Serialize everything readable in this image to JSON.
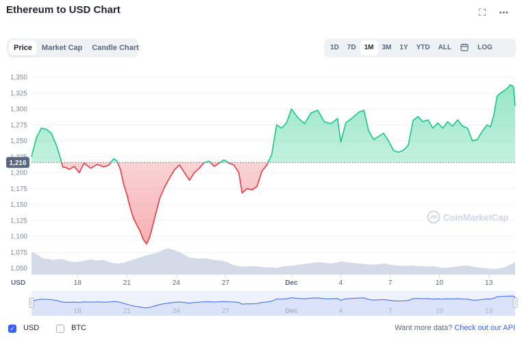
{
  "header": {
    "title": "Ethereum to USD Chart",
    "fullscreen_icon": "expand-icon",
    "more_icon": "more-dots-icon"
  },
  "chart_tabs": [
    {
      "label": "Price",
      "active": true
    },
    {
      "label": "Market Cap",
      "active": false
    },
    {
      "label": "Candle Chart",
      "active": false
    }
  ],
  "time_ranges": [
    {
      "label": "1D",
      "active": false
    },
    {
      "label": "7D",
      "active": false
    },
    {
      "label": "1M",
      "active": true
    },
    {
      "label": "3M",
      "active": false
    },
    {
      "label": "1Y",
      "active": false
    },
    {
      "label": "YTD",
      "active": false
    },
    {
      "label": "ALL",
      "active": false
    }
  ],
  "calendar_icon": "calendar-icon",
  "log_label": "LOG",
  "watermark": "CoinMarketCap",
  "colors": {
    "up": "#16c784",
    "down": "#ea3943",
    "volume": "#cfd6e4",
    "navigator": "#3861fb",
    "reference": "#222531"
  },
  "chart_data": {
    "type": "line",
    "currency_label": "USD",
    "reference_value": 1216,
    "reference_label": "1,216",
    "y_ticks": [
      "1,350",
      "1,325",
      "1,300",
      "1,275",
      "1,250",
      "1,225",
      "1,200",
      "1,175",
      "1,150",
      "1,125",
      "1,100",
      "1,075",
      "1,050"
    ],
    "ylim": [
      1040,
      1355
    ],
    "x_ticks": [
      {
        "label": "18",
        "t": 18
      },
      {
        "label": "21",
        "t": 21
      },
      {
        "label": "24",
        "t": 24
      },
      {
        "label": "27",
        "t": 27
      },
      {
        "label": "Dec",
        "t": 31
      },
      {
        "label": "4",
        "t": 34
      },
      {
        "label": "7",
        "t": 37
      },
      {
        "label": "10",
        "t": 40
      },
      {
        "label": "13",
        "t": 43
      }
    ],
    "x_range": [
      15.2,
      44.6
    ],
    "series": [
      {
        "t": [
          15.2,
          15.5,
          15.8,
          16.1,
          16.4,
          16.7,
          16.9,
          17.1,
          17.3,
          17.5,
          17.8,
          18.1,
          18.4,
          18.8,
          19.2,
          19.6,
          19.9,
          20.2,
          20.4,
          20.6,
          20.8,
          21.0,
          21.2,
          21.4,
          21.6,
          21.8,
          22.0,
          22.2,
          22.4,
          22.6,
          22.8,
          23.0,
          23.3,
          23.6,
          23.9,
          24.2,
          24.5,
          24.8,
          25.1,
          25.4,
          25.7,
          26.0,
          26.3,
          26.6,
          26.9,
          27.2,
          27.5,
          27.8,
          28.0,
          28.3,
          28.6,
          28.9,
          29.2,
          29.5,
          29.8,
          30.1,
          30.4,
          30.7,
          31.0,
          31.4,
          31.8,
          32.2,
          32.6,
          33.0,
          33.4,
          33.8,
          34.0,
          34.3,
          34.7,
          35.1,
          35.4,
          35.7,
          36.0,
          36.3,
          36.6,
          36.9,
          37.2,
          37.5,
          37.8,
          38.1,
          38.4,
          38.7,
          39.0,
          39.3,
          39.6,
          39.9,
          40.2,
          40.5,
          40.8,
          41.1,
          41.4,
          41.7,
          42.0,
          42.3,
          42.6,
          42.9,
          43.1,
          43.3,
          43.5,
          43.7,
          43.9,
          44.1,
          44.3,
          44.5,
          44.6
        ],
        "values": [
          1225,
          1255,
          1270,
          1268,
          1262,
          1244,
          1228,
          1209,
          1208,
          1205,
          1210,
          1200,
          1215,
          1207,
          1213,
          1209,
          1212,
          1222,
          1218,
          1205,
          1182,
          1165,
          1145,
          1128,
          1118,
          1108,
          1095,
          1088,
          1100,
          1120,
          1140,
          1160,
          1178,
          1192,
          1205,
          1212,
          1200,
          1188,
          1200,
          1207,
          1216,
          1218,
          1210,
          1215,
          1220,
          1215,
          1212,
          1200,
          1168,
          1175,
          1173,
          1178,
          1202,
          1212,
          1228,
          1275,
          1270,
          1278,
          1300,
          1286,
          1277,
          1294,
          1298,
          1280,
          1277,
          1285,
          1248,
          1278,
          1286,
          1295,
          1298,
          1265,
          1252,
          1257,
          1262,
          1250,
          1235,
          1232,
          1235,
          1243,
          1282,
          1288,
          1280,
          1283,
          1270,
          1278,
          1270,
          1280,
          1273,
          1283,
          1273,
          1270,
          1250,
          1252,
          1265,
          1275,
          1272,
          1290,
          1320,
          1325,
          1328,
          1332,
          1338,
          1335,
          1305
        ]
      }
    ],
    "volume": [
      0.7,
      0.62,
      0.5,
      0.48,
      0.44,
      0.47,
      0.45,
      0.4,
      0.38,
      0.4,
      0.43,
      0.46,
      0.42,
      0.45,
      0.4,
      0.35,
      0.34,
      0.36,
      0.42,
      0.47,
      0.52,
      0.58,
      0.62,
      0.66,
      0.74,
      0.8,
      0.76,
      0.7,
      0.62,
      0.52,
      0.5,
      0.48,
      0.5,
      0.46,
      0.44,
      0.42,
      0.38,
      0.3,
      0.26,
      0.24,
      0.25,
      0.26,
      0.24,
      0.22,
      0.22,
      0.2,
      0.24,
      0.26,
      0.27,
      0.3,
      0.32,
      0.34,
      0.36,
      0.38,
      0.36,
      0.34,
      0.36,
      0.4,
      0.38,
      0.36,
      0.34,
      0.33,
      0.31,
      0.3,
      0.32,
      0.34,
      0.3,
      0.28,
      0.27,
      0.26,
      0.28,
      0.26,
      0.25,
      0.24,
      0.26,
      0.22,
      0.2,
      0.22,
      0.24,
      0.26,
      0.28,
      0.25,
      0.22,
      0.2,
      0.18,
      0.16,
      0.18,
      0.22,
      0.3,
      0.38
    ]
  },
  "footer": {
    "usd_label": "USD",
    "usd_checked": true,
    "btc_label": "BTC",
    "btc_checked": false,
    "api_prompt": "Want more data?",
    "api_link": "Check out our API"
  }
}
